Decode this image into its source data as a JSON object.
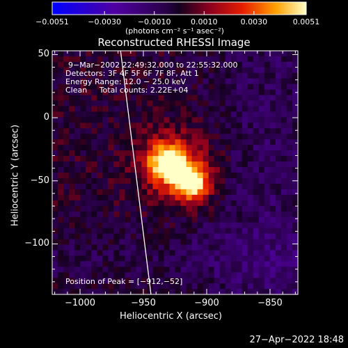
{
  "chart_data": {
    "type": "heatmap",
    "title": "Reconstructed RHESSI Image",
    "xlabel": "Heliocentric X (arcsec)",
    "ylabel": "Heliocentric Y (arcsec)",
    "xlim": [
      -1022,
      -828
    ],
    "ylim": [
      -140,
      53
    ],
    "xticks": [
      -1000,
      -950,
      -900,
      -850
    ],
    "xtick_labels": [
      "−1000",
      "−950",
      "−900",
      "−850"
    ],
    "yticks": [
      50,
      0,
      -50,
      -100
    ],
    "ytick_labels": [
      "50",
      "0",
      "−50",
      "−100"
    ],
    "colorbar": {
      "range": [
        -0.0051,
        0.0051
      ],
      "ticks": [
        -0.0051,
        -0.003,
        -0.001,
        0.001,
        0.003,
        0.0051
      ],
      "tick_labels": [
        "−0.0051",
        "−0.0030",
        "−0.0010",
        "0.0010",
        "0.0030",
        "0.0051"
      ],
      "units": "(photons cm⁻² s⁻¹ asec⁻²)"
    },
    "limb_line": [
      [
        -968,
        53
      ],
      [
        -944,
        -140
      ]
    ],
    "peak_position": [
      -912,
      -52
    ],
    "sources": [
      {
        "x": -912,
        "y": -52,
        "sigma": 9,
        "amplitude": 0.0051
      },
      {
        "x": -932,
        "y": -35,
        "sigma": 10,
        "amplitude": 0.0045
      },
      {
        "x": -922,
        "y": -40,
        "sigma": 20,
        "amplitude": 0.0026
      }
    ]
  },
  "annotations": {
    "time_range": "9−Mar−2002 22:49:32.000 to 22:55:32.000",
    "detectors": "Detectors: 3F 4F 5F 6F 7F 8F, Att 1",
    "energy": "Energy Range: 12.0 − 25.0 keV",
    "clean": "Clean     Total counts: 2.22E+04",
    "peak": "Position of Peak = [−912,−52]"
  },
  "footer": {
    "timestamp": "27−Apr−2022 18:48"
  },
  "colors": {
    "background": "#000000",
    "foreground": "#ffffff"
  }
}
